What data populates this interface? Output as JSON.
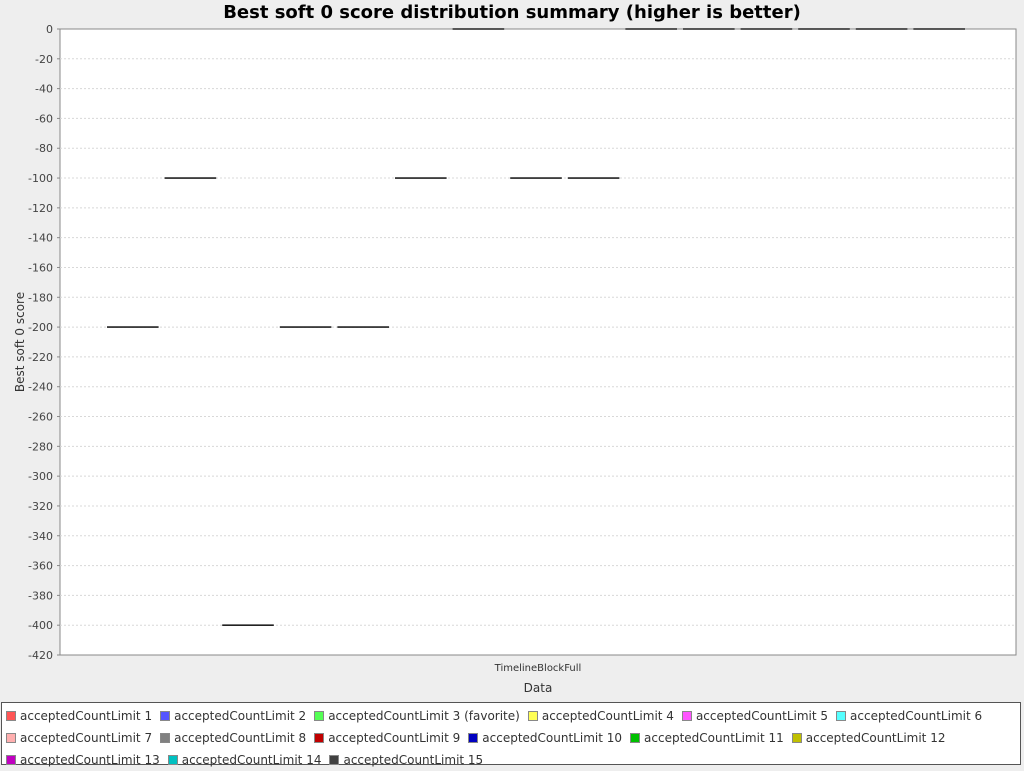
{
  "chart_data": {
    "type": "box",
    "title": "Best soft 0 score distribution summary (higher is better)",
    "xlabel": "Data",
    "ylabel": "Best soft 0 score",
    "categories": [
      "TimelineBlockFull"
    ],
    "ylim": [
      -420,
      0
    ],
    "yticks": [
      0,
      -20,
      -40,
      -60,
      -80,
      -100,
      -120,
      -140,
      -160,
      -180,
      -200,
      -220,
      -240,
      -260,
      -280,
      -300,
      -320,
      -340,
      -360,
      -380,
      -400,
      -420
    ],
    "grid": true,
    "legend_position": "bottom",
    "series": [
      {
        "name": "acceptedCountLimit 1",
        "color": "#ff5555",
        "values": [
          -200
        ]
      },
      {
        "name": "acceptedCountLimit 2",
        "color": "#5555ff",
        "values": [
          -100
        ]
      },
      {
        "name": "acceptedCountLimit 3 (favorite)",
        "color": "#55ff55",
        "values": [
          -400
        ]
      },
      {
        "name": "acceptedCountLimit 4",
        "color": "#ffff55",
        "values": [
          -200
        ]
      },
      {
        "name": "acceptedCountLimit 5",
        "color": "#ff55ff",
        "values": [
          -200
        ]
      },
      {
        "name": "acceptedCountLimit 6",
        "color": "#55ffff",
        "values": [
          -100
        ]
      },
      {
        "name": "acceptedCountLimit 7",
        "color": "#ffafaf",
        "values": [
          0
        ]
      },
      {
        "name": "acceptedCountLimit 8",
        "color": "#808080",
        "values": [
          -100
        ]
      },
      {
        "name": "acceptedCountLimit 9",
        "color": "#c00000",
        "values": [
          -100
        ]
      },
      {
        "name": "acceptedCountLimit 10",
        "color": "#0000c0",
        "values": [
          0
        ]
      },
      {
        "name": "acceptedCountLimit 11",
        "color": "#00c000",
        "values": [
          0
        ]
      },
      {
        "name": "acceptedCountLimit 12",
        "color": "#c0c000",
        "values": [
          0
        ]
      },
      {
        "name": "acceptedCountLimit 13",
        "color": "#c000c0",
        "values": [
          0
        ]
      },
      {
        "name": "acceptedCountLimit 14",
        "color": "#00c0c0",
        "values": [
          0
        ]
      },
      {
        "name": "acceptedCountLimit 15",
        "color": "#404040",
        "values": [
          0
        ]
      }
    ]
  }
}
